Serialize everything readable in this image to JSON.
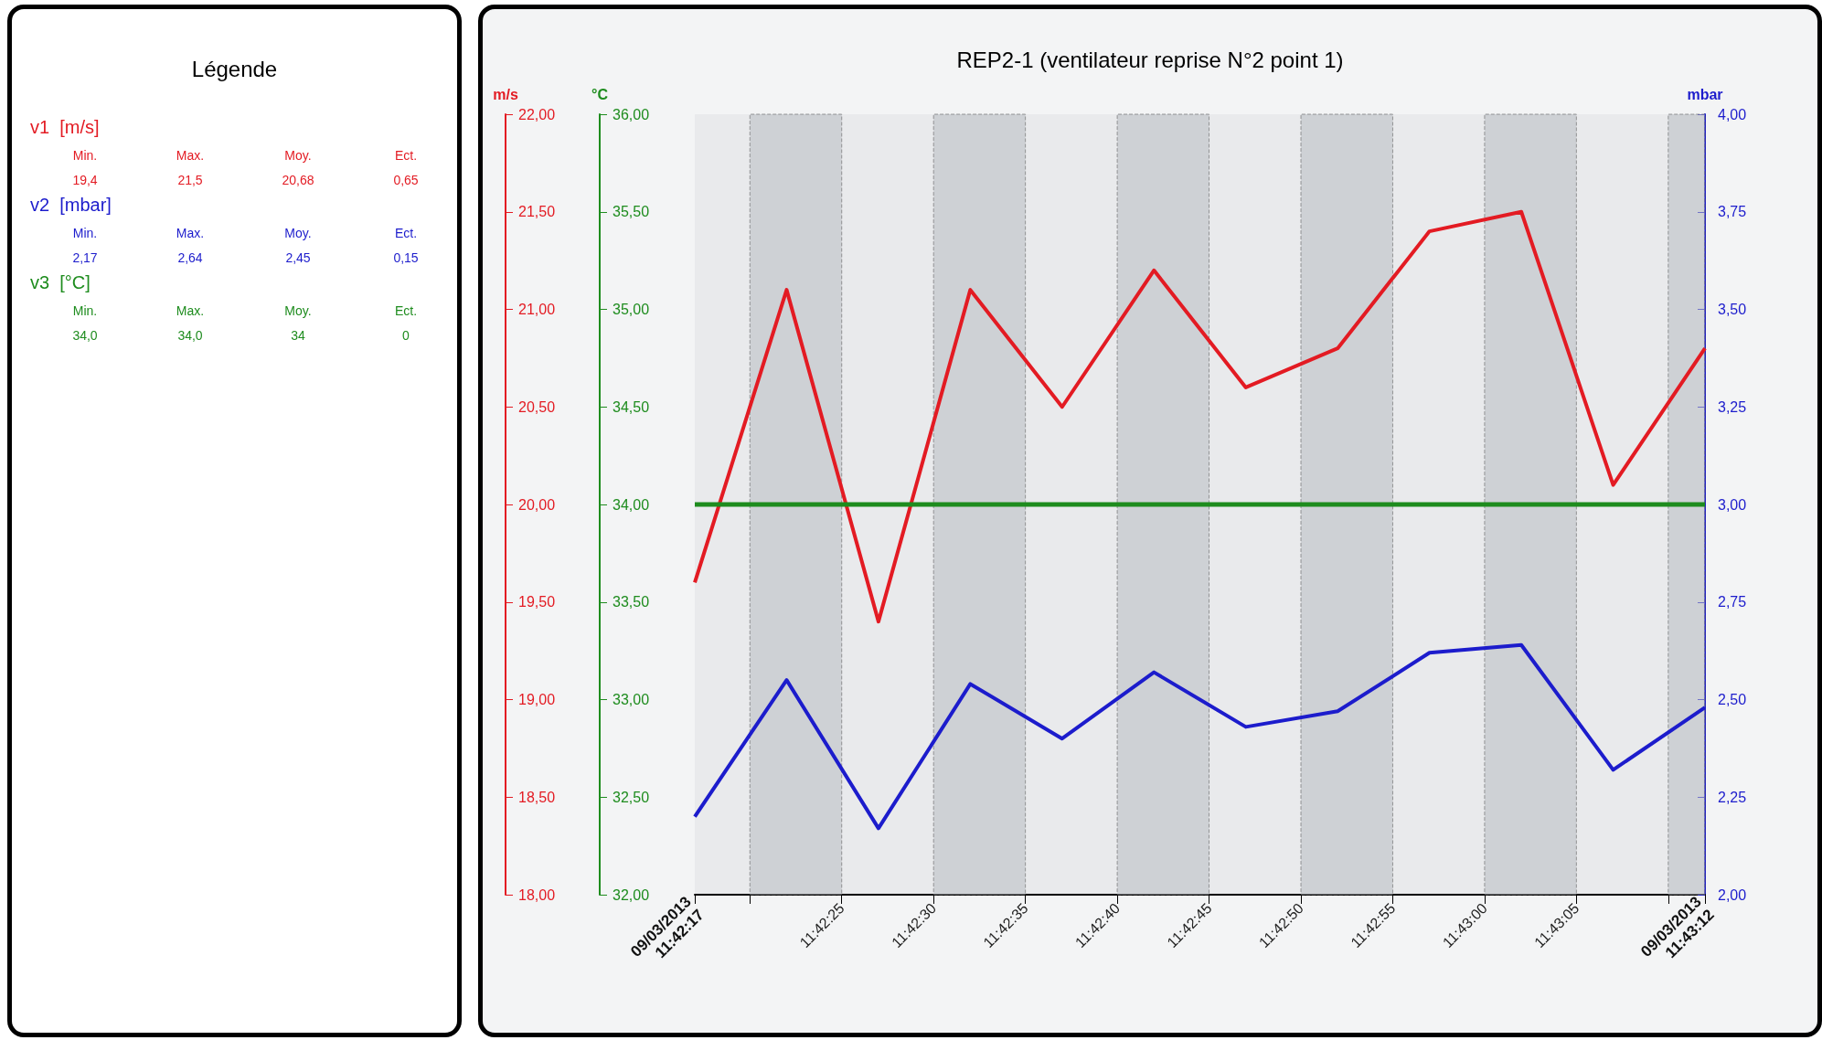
{
  "chart_data": [
    {
      "type": "other",
      "title": "Légende",
      "annotations": [
        "v1  [m/s]",
        "Min.",
        "Max.",
        "Moy.",
        "Ect.",
        "19,4",
        "21,5",
        "20,68",
        "0,65",
        "v2  [mbar]",
        "Min.",
        "Max.",
        "Moy.",
        "Ect.",
        "2,17",
        "2,64",
        "2,45",
        "0,15",
        "v3  [°C]",
        "Min.",
        "Max.",
        "Moy.",
        "Ect.",
        "34,0",
        "34,0",
        "34",
        "0"
      ]
    },
    {
      "type": "line",
      "title": "REP2-1 (ventilateur reprise N°2 point 1)",
      "ylabel": "m/s",
      "y2label": "°C",
      "y3label": "mbar",
      "x": [
        "2013-03-09T11:42:17",
        "2013-03-09T11:42:22",
        "2013-03-09T11:42:27",
        "2013-03-09T11:42:32",
        "2013-03-09T11:42:37",
        "2013-03-09T11:42:42",
        "2013-03-09T11:42:47",
        "2013-03-09T11:42:52",
        "2013-03-09T11:42:57",
        "2013-03-09T11:43:02",
        "2013-03-09T11:43:07",
        "2013-03-09T11:43:12"
      ],
      "xlim": [
        "2013-03-09T11:42:17",
        "2013-03-09T11:43:12"
      ],
      "xticks": [
        {
          "value": "2013-03-09T11:42:17",
          "label": "09/03/2013\n11:42:17"
        },
        {
          "value": "2013-03-09T11:42:20",
          "label": null
        },
        {
          "value": "2013-03-09T11:42:25",
          "label": "11:42:25"
        },
        {
          "value": "2013-03-09T11:42:30",
          "label": "11:42:30"
        },
        {
          "value": "2013-03-09T11:42:35",
          "label": "11:42:35"
        },
        {
          "value": "2013-03-09T11:42:40",
          "label": "11:42:40"
        },
        {
          "value": "2013-03-09T11:42:45",
          "label": "11:42:45"
        },
        {
          "value": "2013-03-09T11:42:50",
          "label": "11:42:50"
        },
        {
          "value": "2013-03-09T11:42:55",
          "label": "11:42:55"
        },
        {
          "value": "2013-03-09T11:43:00",
          "label": "11:43:00"
        },
        {
          "value": "2013-03-09T11:43:05",
          "label": "11:43:05"
        },
        {
          "value": "2013-03-09T11:43:10",
          "label": null
        },
        {
          "value": "2013-03-09T11:43:12",
          "label": "09/03/2013\n11:43:12"
        }
      ],
      "ylim": [
        18,
        22
      ],
      "yticks": [
        {
          "value": 18,
          "label": "18,00"
        },
        {
          "value": 18.5,
          "label": "18,50"
        },
        {
          "value": 19,
          "label": "19,00"
        },
        {
          "value": 19.5,
          "label": "19,50"
        },
        {
          "value": 20,
          "label": "20,00"
        },
        {
          "value": 20.5,
          "label": "20,50"
        },
        {
          "value": 21,
          "label": "21,00"
        },
        {
          "value": 21.5,
          "label": "21,50"
        },
        {
          "value": 22,
          "label": "22,00"
        }
      ],
      "y2lim": [
        32,
        36
      ],
      "y2ticks": [
        {
          "value": 32,
          "label": "32,00"
        },
        {
          "value": 32.5,
          "label": "32,50"
        },
        {
          "value": 33,
          "label": "33,00"
        },
        {
          "value": 33.5,
          "label": "33,50"
        },
        {
          "value": 34,
          "label": "34,00"
        },
        {
          "value": 34.5,
          "label": "34,50"
        },
        {
          "value": 35,
          "label": "35,00"
        },
        {
          "value": 35.5,
          "label": "35,50"
        },
        {
          "value": 36,
          "label": "36,00"
        }
      ],
      "y3lim": [
        2,
        4
      ],
      "y3ticks": [
        {
          "value": 2,
          "label": "2,00"
        },
        {
          "value": 2.25,
          "label": "2,25"
        },
        {
          "value": 2.5,
          "label": "2,50"
        },
        {
          "value": 2.75,
          "label": "2,75"
        },
        {
          "value": 3,
          "label": "3,00"
        },
        {
          "value": 3.25,
          "label": "3,25"
        },
        {
          "value": 3.5,
          "label": "3,50"
        },
        {
          "value": 3.75,
          "label": "3,75"
        },
        {
          "value": 4,
          "label": "4,00"
        }
      ],
      "series": [
        {
          "color": "#e31b23",
          "axis": "y",
          "values": [
            19.6,
            21.1,
            19.4,
            21.1,
            20.5,
            21.2,
            20.6,
            20.8,
            21.4,
            21.5,
            20.1,
            20.8
          ]
        },
        {
          "color": "#1c1ccc",
          "axis": "y3",
          "values": [
            2.2,
            2.55,
            2.17,
            2.54,
            2.4,
            2.57,
            2.43,
            2.47,
            2.62,
            2.64,
            2.32,
            2.48
          ]
        },
        {
          "color": "#1e8c1e",
          "axis": "y2",
          "values": [
            34,
            34,
            34,
            34,
            34,
            34,
            34,
            34,
            34,
            34,
            34,
            34
          ]
        }
      ],
      "bands": [
        {
          "axis": "x",
          "from": "2013-03-09T11:42:20",
          "to": "2013-03-09T11:42:25",
          "color": "#b8bcc2"
        },
        {
          "axis": "x",
          "from": "2013-03-09T11:42:30",
          "to": "2013-03-09T11:42:35",
          "color": "#b8bcc2"
        },
        {
          "axis": "x",
          "from": "2013-03-09T11:42:40",
          "to": "2013-03-09T11:42:45",
          "color": "#b8bcc2"
        },
        {
          "axis": "x",
          "from": "2013-03-09T11:42:50",
          "to": "2013-03-09T11:42:55",
          "color": "#b8bcc2"
        },
        {
          "axis": "x",
          "from": "2013-03-09T11:43:00",
          "to": "2013-03-09T11:43:05",
          "color": "#b8bcc2"
        },
        {
          "axis": "x",
          "from": "2013-03-09T11:43:10",
          "to": "2013-03-09T11:43:12",
          "color": "#b8bcc2"
        }
      ]
    }
  ]
}
